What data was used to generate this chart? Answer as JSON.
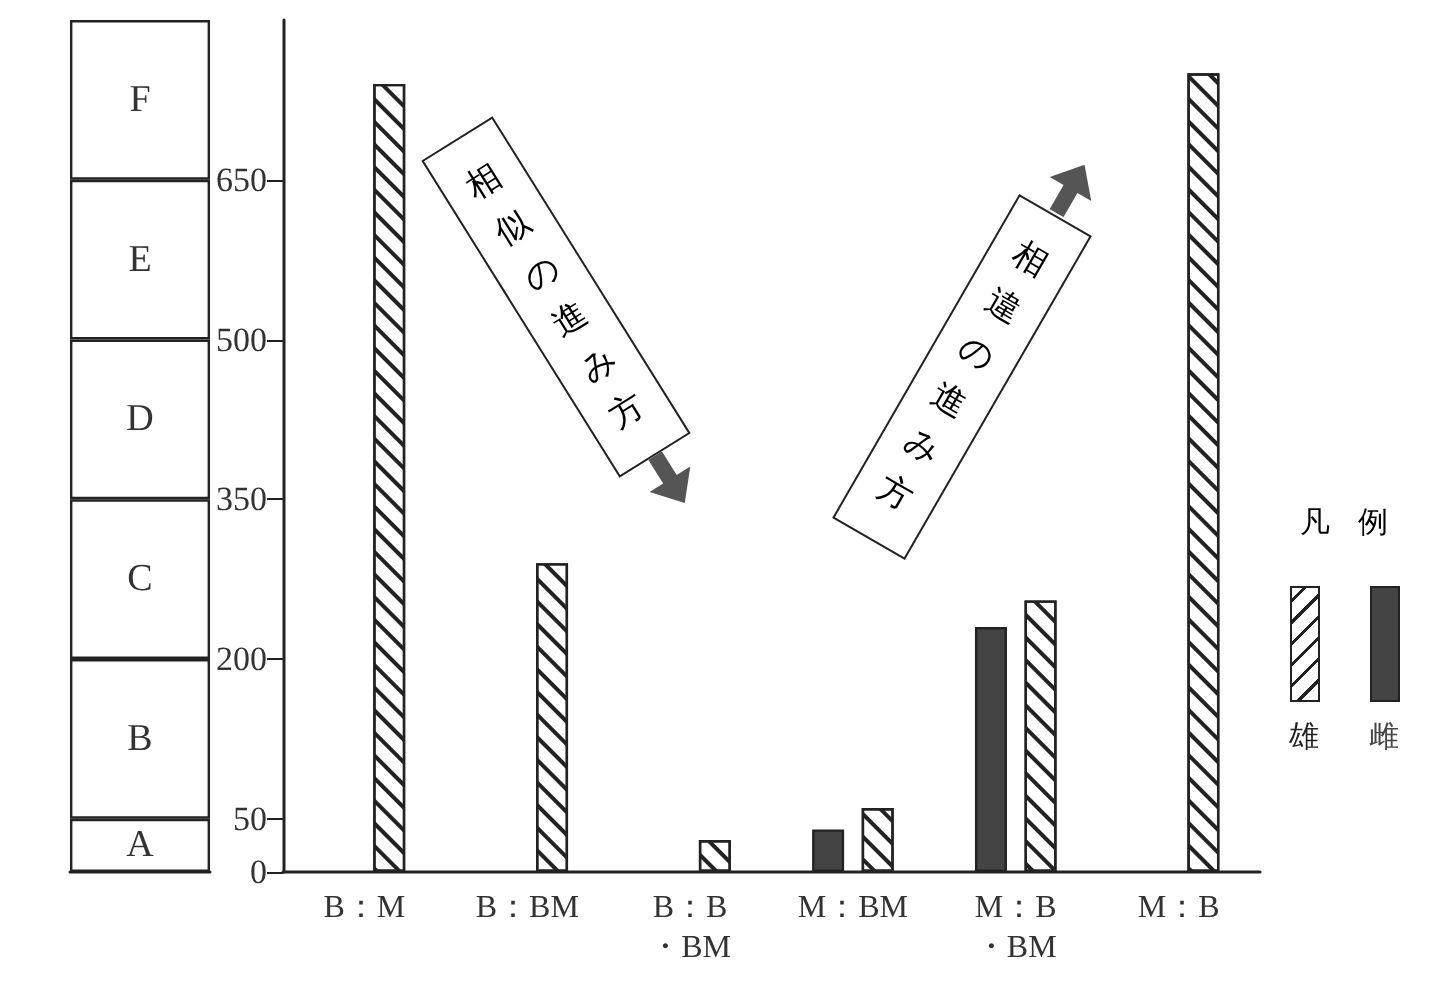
{
  "chart_data": [
    {
      "type": "bar",
      "stacked": true,
      "categories": [
        null
      ],
      "ylim": [
        0,
        800
      ],
      "series": [
        {
          "name": "A",
          "color": "#ffffff",
          "values": [
            50
          ]
        },
        {
          "name": "B",
          "color": "#ffffff",
          "values": [
            150
          ]
        },
        {
          "name": "C",
          "color": "#ffffff",
          "values": [
            150
          ]
        },
        {
          "name": "D",
          "color": "#ffffff",
          "values": [
            150
          ]
        },
        {
          "name": "E",
          "color": "#ffffff",
          "values": [
            150
          ]
        },
        {
          "name": "F",
          "color": "#ffffff",
          "values": [
            150
          ]
        }
      ]
    },
    {
      "type": "bar",
      "categories": [
        "B：M",
        "B：BM",
        "B：B・BM",
        "M：BM",
        "M：B・BM",
        "M：B"
      ],
      "series": [
        {
          "name": "雌",
          "color": "#444444",
          "values": [
            null,
            null,
            null,
            40,
            230,
            null
          ]
        },
        {
          "name": "雄",
          "color": "#ffffff",
          "values": [
            740,
            290,
            30,
            60,
            255,
            750
          ]
        }
      ],
      "ylim": [
        0,
        800
      ],
      "yticks": [
        0,
        50,
        200,
        350,
        500,
        650
      ],
      "annotations": [
        "相似の進み方",
        "相違の進み方"
      ],
      "legend": "right",
      "legend_title": "凡例",
      "grid": false
    }
  ]
}
